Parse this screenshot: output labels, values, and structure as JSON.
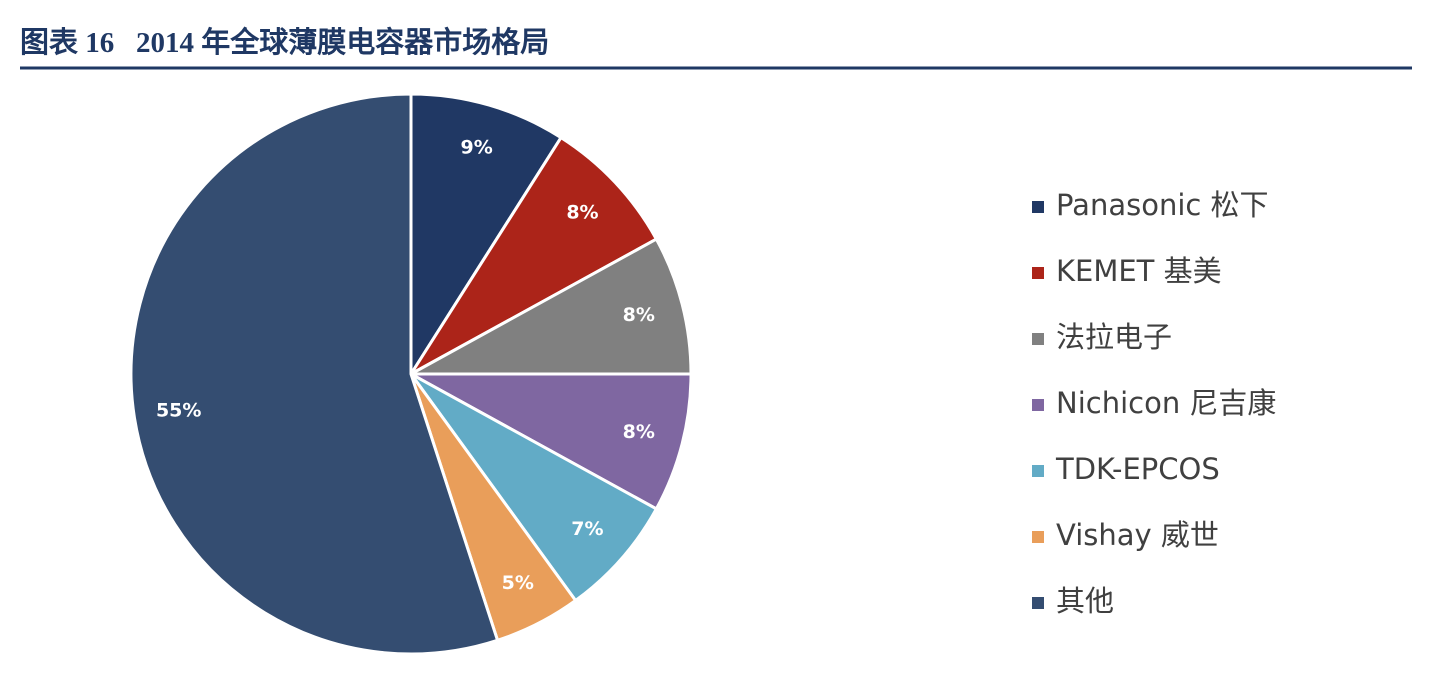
{
  "chart_data": {
    "type": "pie",
    "title": "图表 16   2014 年全球薄膜电容器市场格局",
    "categories": [
      "Panasonic 松下",
      "KEMET 基美",
      "法拉电子",
      "Nichicon 尼吉康",
      "TDK-EPCOS",
      "Vishay 威世",
      "其他"
    ],
    "values": [
      9,
      8,
      8,
      8,
      7,
      5,
      55
    ],
    "value_labels": [
      "9%",
      "8%",
      "8%",
      "8%",
      "7%",
      "5%",
      "55%"
    ],
    "colors": [
      "#203864",
      "#ac2419",
      "#808080",
      "#7f67a1",
      "#62abc6",
      "#e99e5a",
      "#344d71"
    ]
  }
}
